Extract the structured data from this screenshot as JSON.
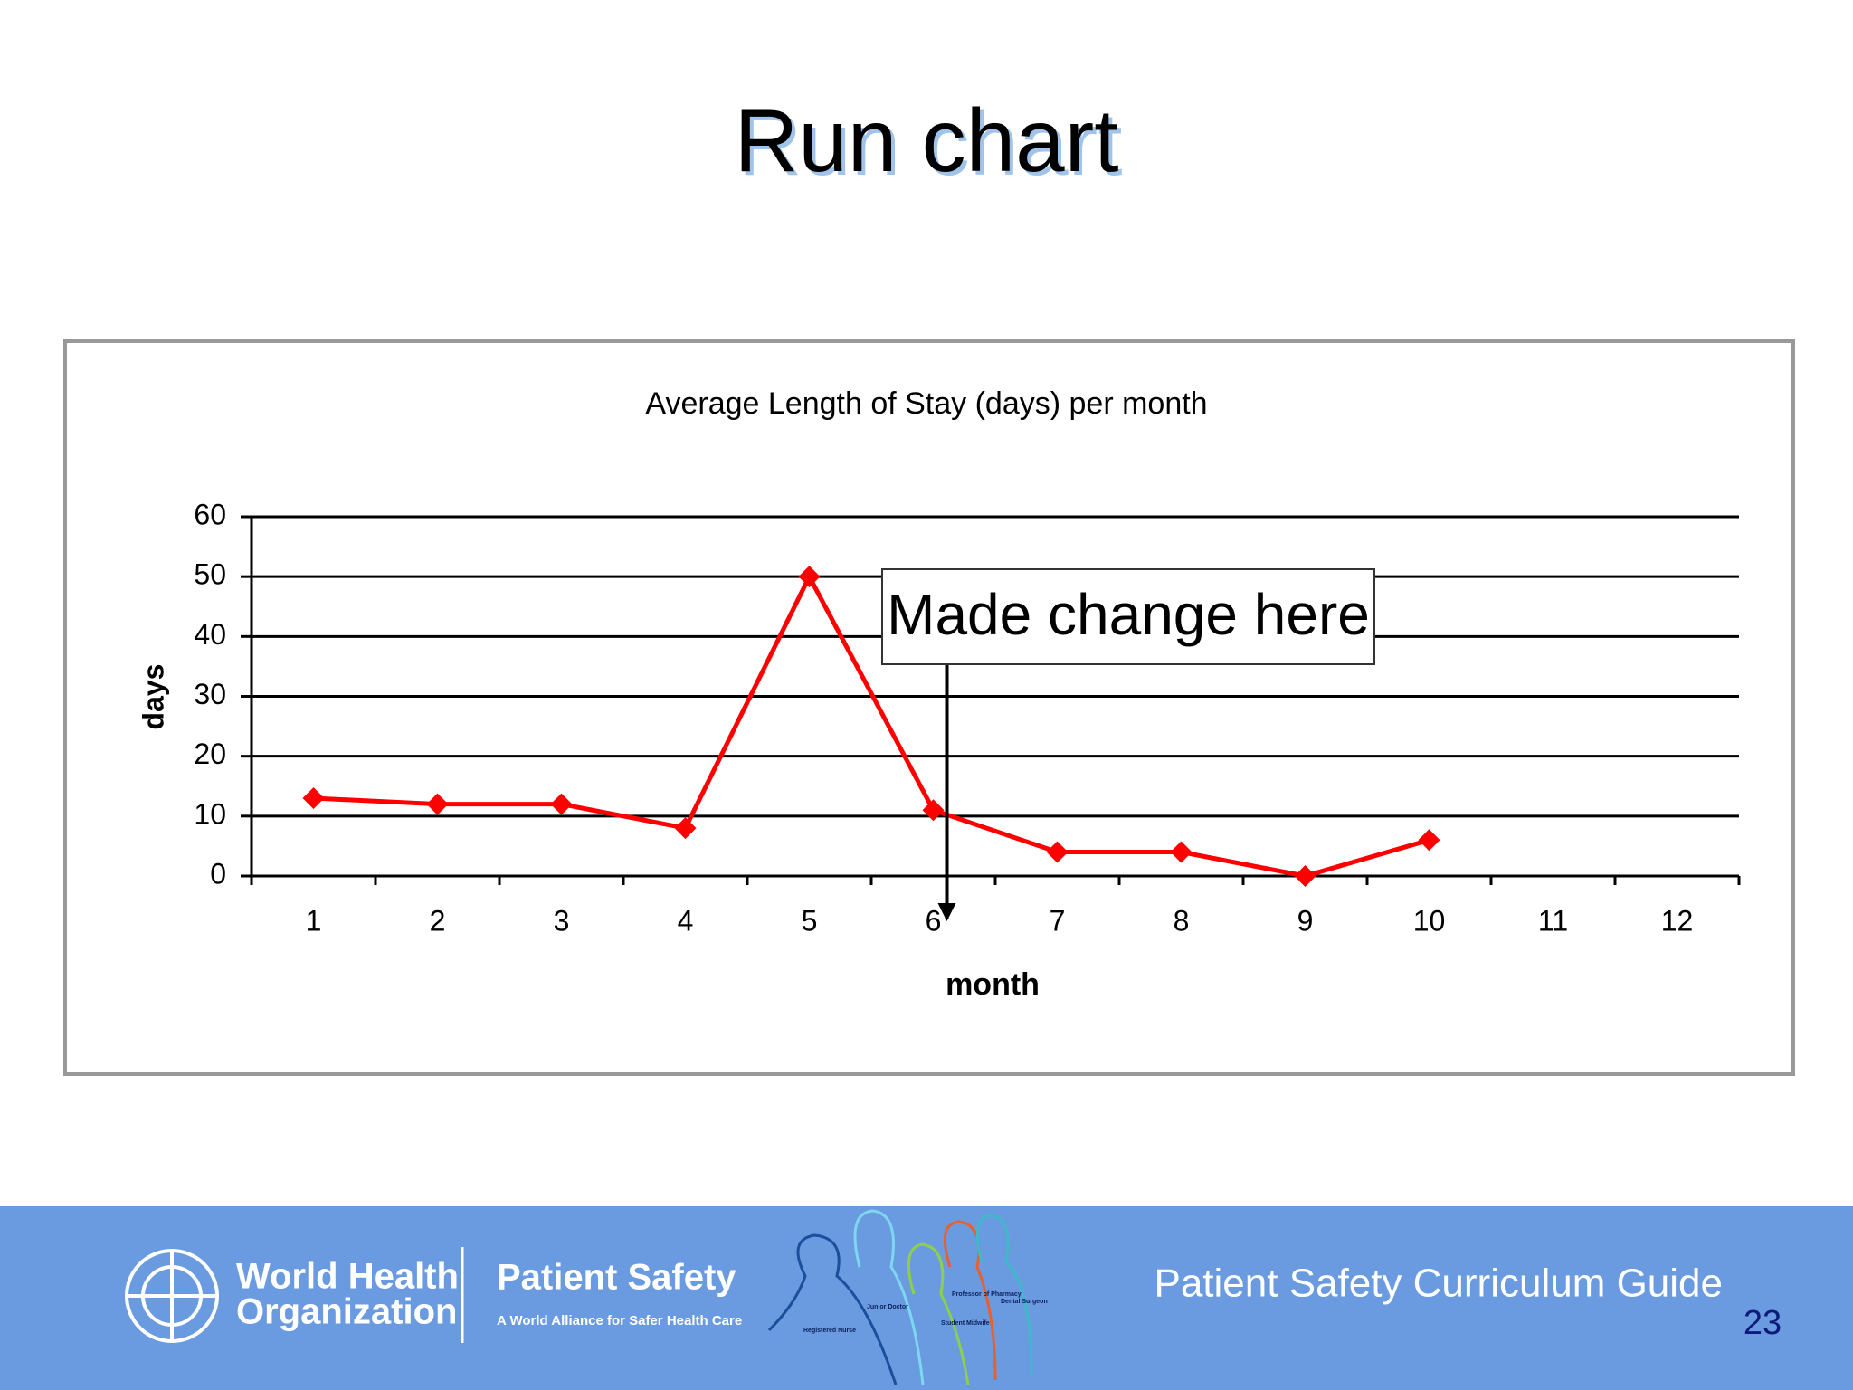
{
  "slide": {
    "title": "Run chart",
    "footer": {
      "org_line1": "World Health",
      "org_line2": "Organization",
      "program": "Patient Safety",
      "program_tagline": "A World Alliance for Safer Health Care",
      "figures": [
        "Registered Nurse",
        "Junior Doctor",
        "Student Midwife",
        "Professor of Pharmacy",
        "Dental Surgeon"
      ],
      "guide": "Patient Safety Curriculum Guide",
      "page_number": "23"
    }
  },
  "chart_data": {
    "type": "line",
    "title": "Average Length of Stay (days) per month",
    "x_label": "month",
    "y_label": "days",
    "categories": [
      "1",
      "2",
      "3",
      "4",
      "5",
      "6",
      "7",
      "8",
      "9",
      "10",
      "11",
      "12"
    ],
    "series": [
      {
        "name": "days",
        "color": "#ff0000",
        "values": [
          13,
          12,
          12,
          8,
          50,
          11,
          4,
          4,
          0,
          6,
          null,
          null
        ]
      }
    ],
    "ylim": [
      0,
      60
    ],
    "yticks": [
      0,
      10,
      20,
      30,
      40,
      50,
      60
    ],
    "grid": true,
    "annotation": "Made change here",
    "annotation_category": "6"
  }
}
